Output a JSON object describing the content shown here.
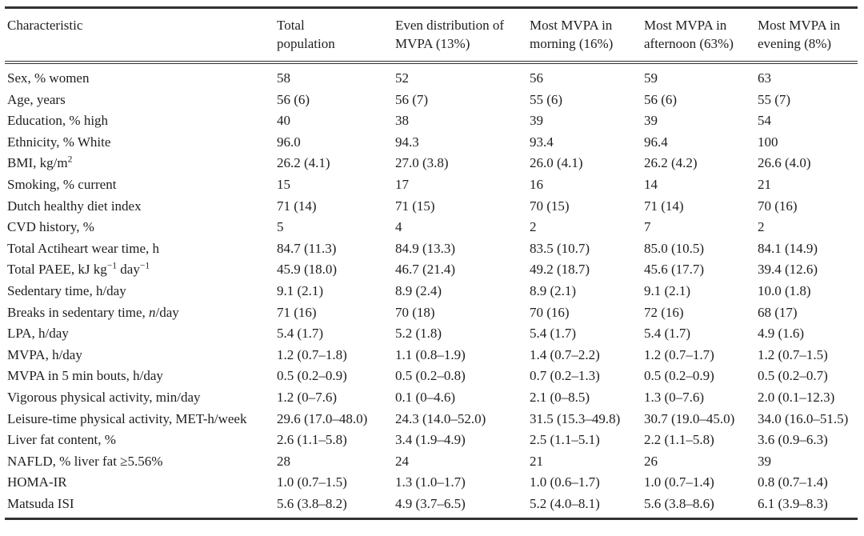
{
  "colors": {
    "background": "#ffffff",
    "text": "#1e1e1e",
    "rule": "#333333"
  },
  "table": {
    "columns": [
      {
        "id": "characteristic",
        "lines": [
          "Characteristic"
        ]
      },
      {
        "id": "total-population",
        "lines": [
          "Total",
          "population"
        ]
      },
      {
        "id": "even-distribution",
        "lines": [
          "Even distribution of",
          "MVPA (13%)"
        ]
      },
      {
        "id": "most-mvpa-morning",
        "lines": [
          "Most MVPA in",
          "morning (16%)"
        ]
      },
      {
        "id": "most-mvpa-afternoon",
        "lines": [
          "Most MVPA in",
          "afternoon (63%)"
        ]
      },
      {
        "id": "most-mvpa-evening",
        "lines": [
          "Most MVPA in",
          "evening (8%)"
        ]
      }
    ],
    "rows": [
      {
        "label_html": "Sex, % women",
        "values": [
          "58",
          "52",
          "56",
          "59",
          "63"
        ]
      },
      {
        "label_html": "Age, years",
        "values": [
          "56 (6)",
          "56 (7)",
          "55 (6)",
          "56 (6)",
          "55 (7)"
        ]
      },
      {
        "label_html": "Education, % high",
        "values": [
          "40",
          "38",
          "39",
          "39",
          "54"
        ]
      },
      {
        "label_html": "Ethnicity, % White",
        "values": [
          "96.0",
          "94.3",
          "93.4",
          "96.4",
          "100"
        ]
      },
      {
        "label_html": "BMI, kg/m<sup>2</sup>",
        "values": [
          "26.2 (4.1)",
          "27.0 (3.8)",
          "26.0 (4.1)",
          "26.2 (4.2)",
          "26.6 (4.0)"
        ]
      },
      {
        "label_html": "Smoking, % current",
        "values": [
          "15",
          "17",
          "16",
          "14",
          "21"
        ]
      },
      {
        "label_html": "Dutch healthy diet index",
        "values": [
          "71 (14)",
          "71 (15)",
          "70 (15)",
          "71 (14)",
          "70 (16)"
        ]
      },
      {
        "label_html": "CVD history, %",
        "values": [
          "5",
          "4",
          "2",
          "7",
          "2"
        ]
      },
      {
        "label_html": "Total Actiheart wear time, h",
        "values": [
          "84.7 (11.3)",
          "84.9 (13.3)",
          "83.5 (10.7)",
          "85.0 (10.5)",
          "84.1 (14.9)"
        ]
      },
      {
        "label_html": "Total PAEE, kJ kg<sup>−1</sup> day<sup>−1</sup>",
        "values": [
          "45.9 (18.0)",
          "46.7 (21.4)",
          "49.2 (18.7)",
          "45.6 (17.7)",
          "39.4 (12.6)"
        ]
      },
      {
        "label_html": "Sedentary time, h/day",
        "values": [
          "9.1 (2.1)",
          "8.9 (2.4)",
          "8.9 (2.1)",
          "9.1 (2.1)",
          "10.0 (1.8)"
        ]
      },
      {
        "label_html": "Breaks in sedentary time, <i>n</i>/day",
        "values": [
          "71 (16)",
          "70 (18)",
          "70 (16)",
          "72 (16)",
          "68 (17)"
        ]
      },
      {
        "label_html": "LPA, h/day",
        "values": [
          "5.4 (1.7)",
          "5.2 (1.8)",
          "5.4 (1.7)",
          "5.4 (1.7)",
          "4.9 (1.6)"
        ]
      },
      {
        "label_html": "MVPA, h/day",
        "values": [
          "1.2 (0.7–1.8)",
          "1.1 (0.8–1.9)",
          "1.4 (0.7–2.2)",
          "1.2 (0.7–1.7)",
          "1.2 (0.7–1.5)"
        ]
      },
      {
        "label_html": "MVPA in 5 min bouts, h/day",
        "values": [
          "0.5 (0.2–0.9)",
          "0.5 (0.2–0.8)",
          "0.7 (0.2–1.3)",
          "0.5 (0.2–0.9)",
          "0.5 (0.2–0.7)"
        ]
      },
      {
        "label_html": "Vigorous physical activity, min/day",
        "values": [
          "1.2 (0–7.6)",
          "0.1 (0–4.6)",
          "2.1 (0–8.5)",
          "1.3 (0–7.6)",
          "2.0 (0.1–12.3)"
        ]
      },
      {
        "label_html": "Leisure-time physical activity, MET-h/week",
        "values": [
          "29.6 (17.0–48.0)",
          "24.3 (14.0–52.0)",
          "31.5 (15.3–49.8)",
          "30.7 (19.0–45.0)",
          "34.0 (16.0–51.5)"
        ]
      },
      {
        "label_html": "Liver fat content, %",
        "values": [
          "2.6 (1.1–5.8)",
          "3.4 (1.9–4.9)",
          "2.5 (1.1–5.1)",
          "2.2 (1.1–5.8)",
          "3.6 (0.9–6.3)"
        ]
      },
      {
        "label_html": "NAFLD, % liver fat ≥5.56%",
        "values": [
          "28",
          "24",
          "21",
          "26",
          "39"
        ]
      },
      {
        "label_html": "HOMA-IR",
        "values": [
          "1.0 (0.7–1.5)",
          "1.3 (1.0–1.7)",
          "1.0 (0.6–1.7)",
          "1.0 (0.7–1.4)",
          "0.8 (0.7–1.4)"
        ]
      },
      {
        "label_html": "Matsuda ISI",
        "values": [
          "5.6 (3.8–8.2)",
          "4.9 (3.7–6.5)",
          "5.2 (4.0–8.1)",
          "5.6 (3.8–8.6)",
          "6.1 (3.9–8.3)"
        ]
      }
    ]
  }
}
